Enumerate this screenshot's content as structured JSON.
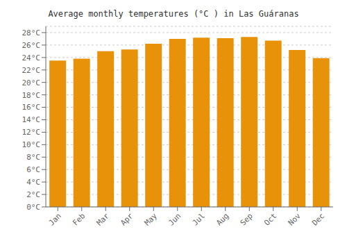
{
  "chart_data": {
    "type": "bar",
    "title": "Average monthly temperatures (°C ) in Las Guáranas",
    "categories": [
      "Jan",
      "Feb",
      "Mar",
      "Apr",
      "May",
      "Jun",
      "Jul",
      "Aug",
      "Sep",
      "Oct",
      "Nov",
      "Dec"
    ],
    "values": [
      23.5,
      23.8,
      25.0,
      25.3,
      26.2,
      27.0,
      27.2,
      27.1,
      27.3,
      26.7,
      25.2,
      23.9
    ],
    "color": "#E8920A",
    "ylim": [
      0,
      29
    ],
    "yticks": [
      {
        "value": 0,
        "label": "0°C"
      },
      {
        "value": 2,
        "label": "2°C"
      },
      {
        "value": 4,
        "label": "4°C"
      },
      {
        "value": 6,
        "label": "6°C"
      },
      {
        "value": 8,
        "label": "8°C"
      },
      {
        "value": 10,
        "label": "10°C"
      },
      {
        "value": 12,
        "label": "12°C"
      },
      {
        "value": 14,
        "label": "14°C"
      },
      {
        "value": 16,
        "label": "16°C"
      },
      {
        "value": 18,
        "label": "18°C"
      },
      {
        "value": 20,
        "label": "20°C"
      },
      {
        "value": 22,
        "label": "22°C"
      },
      {
        "value": 24,
        "label": "24°C"
      },
      {
        "value": 26,
        "label": "26°C"
      },
      {
        "value": 28,
        "label": "28°C"
      }
    ],
    "grid": true
  }
}
